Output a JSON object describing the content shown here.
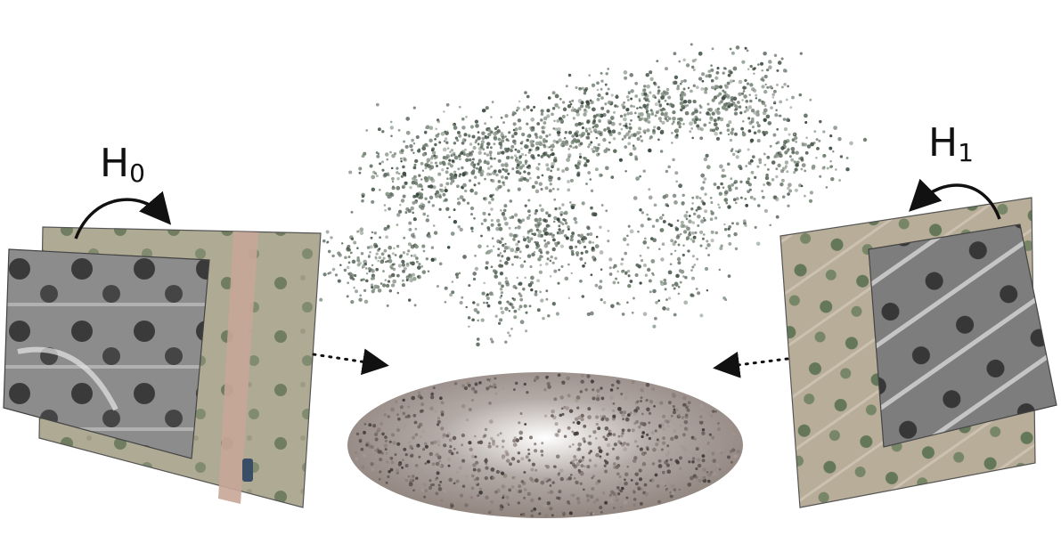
{
  "labels": {
    "left": {
      "main": "H",
      "sub": "0"
    },
    "right": {
      "main": "H",
      "sub": "1"
    }
  },
  "colors": {
    "aerial_ground": "#a7a48f",
    "field_dirt": "#b9a69a",
    "road": "#c9a89c",
    "tree_dark": "#2f3a2c",
    "gray_image": "#8e8e8e",
    "point_cloud": "#5c6b5e",
    "ground_disc": "#9a8d86",
    "arrow": "#111111"
  },
  "icons": {
    "warp_arrow": "curved-arrow-icon",
    "projection_arrow": "dotted-arrow-icon"
  }
}
